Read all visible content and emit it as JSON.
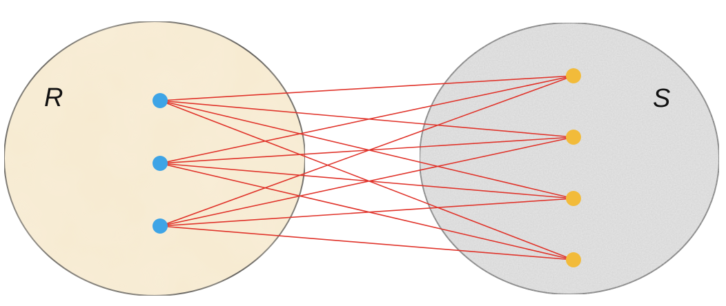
{
  "diagram": {
    "type": "bipartite-mapping",
    "set_r": {
      "label": "R",
      "fill_color": "#f7ead0",
      "node_color": "#3ea4e6",
      "node_count": 3
    },
    "set_s": {
      "label": "S",
      "fill_color": "#e6e6e6",
      "node_color": "#f2bb3a",
      "node_count": 4
    },
    "edge_color": "#e0332a",
    "edges": [
      [
        0,
        0
      ],
      [
        0,
        1
      ],
      [
        0,
        2
      ],
      [
        0,
        3
      ],
      [
        1,
        0
      ],
      [
        1,
        1
      ],
      [
        1,
        2
      ],
      [
        1,
        3
      ],
      [
        2,
        0
      ],
      [
        2,
        1
      ],
      [
        2,
        2
      ],
      [
        2,
        3
      ]
    ]
  }
}
